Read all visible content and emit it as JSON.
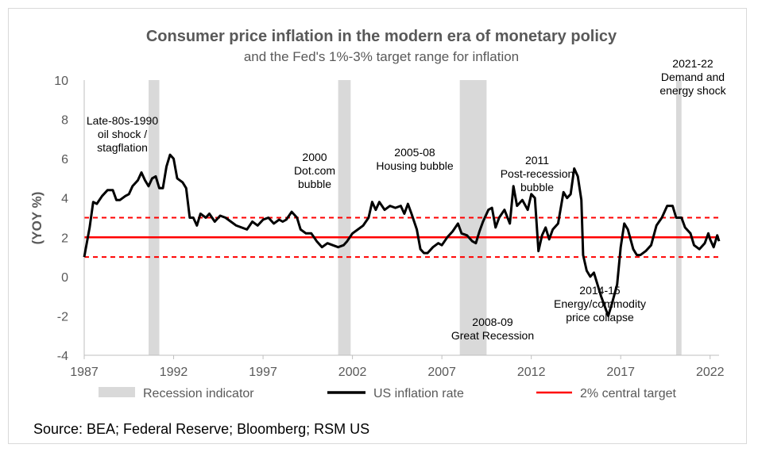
{
  "chart_data": {
    "type": "line",
    "title": "Consumer price inflation in the modern era of monetary policy",
    "subtitle": "and the Fed's 1%-3% target range for inflation",
    "ylabel": "(YOY %)",
    "xlabel": "",
    "xlim": [
      1987,
      2022.5
    ],
    "ylim": [
      -4,
      10
    ],
    "x_ticks": [
      "1987",
      "1992",
      "1997",
      "2002",
      "2007",
      "2012",
      "2017",
      "2022"
    ],
    "y_ticks": [
      "10",
      "8",
      "6",
      "4",
      "2",
      "0",
      "-2",
      "-4"
    ],
    "grid": false,
    "legend_position": "bottom",
    "recessions": [
      [
        1990.6,
        1991.2
      ],
      [
        2001.2,
        2001.9
      ],
      [
        2008.0,
        2009.5
      ],
      [
        2020.1,
        2020.4
      ]
    ],
    "target_lines": [
      {
        "value": 3,
        "style": "dashed"
      },
      {
        "value": 2,
        "style": "solid"
      },
      {
        "value": 1,
        "style": "dashed"
      }
    ],
    "series": [
      {
        "name": "US inflation rate",
        "color": "#000000",
        "points": [
          [
            1987.0,
            1.0
          ],
          [
            1987.3,
            2.5
          ],
          [
            1987.5,
            3.8
          ],
          [
            1987.7,
            3.7
          ],
          [
            1988.0,
            4.1
          ],
          [
            1988.3,
            4.4
          ],
          [
            1988.6,
            4.4
          ],
          [
            1988.8,
            3.9
          ],
          [
            1989.0,
            3.9
          ],
          [
            1989.3,
            4.1
          ],
          [
            1989.5,
            4.2
          ],
          [
            1989.7,
            4.6
          ],
          [
            1990.0,
            4.9
          ],
          [
            1990.2,
            5.3
          ],
          [
            1990.4,
            4.9
          ],
          [
            1990.6,
            4.6
          ],
          [
            1990.8,
            5.0
          ],
          [
            1991.0,
            5.1
          ],
          [
            1991.2,
            4.5
          ],
          [
            1991.4,
            4.5
          ],
          [
            1991.6,
            5.6
          ],
          [
            1991.8,
            6.2
          ],
          [
            1992.0,
            6.0
          ],
          [
            1992.2,
            5.0
          ],
          [
            1992.5,
            4.8
          ],
          [
            1992.7,
            4.5
          ],
          [
            1992.9,
            3.0
          ],
          [
            1993.1,
            3.0
          ],
          [
            1993.3,
            2.6
          ],
          [
            1993.5,
            3.2
          ],
          [
            1993.8,
            3.0
          ],
          [
            1994.0,
            3.2
          ],
          [
            1994.3,
            2.8
          ],
          [
            1994.6,
            3.1
          ],
          [
            1994.9,
            3.0
          ],
          [
            1995.2,
            2.8
          ],
          [
            1995.5,
            2.6
          ],
          [
            1995.8,
            2.5
          ],
          [
            1996.1,
            2.4
          ],
          [
            1996.4,
            2.8
          ],
          [
            1996.7,
            2.6
          ],
          [
            1997.0,
            2.9
          ],
          [
            1997.3,
            3.0
          ],
          [
            1997.6,
            2.7
          ],
          [
            1997.9,
            2.9
          ],
          [
            1998.1,
            2.8
          ],
          [
            1998.3,
            2.9
          ],
          [
            1998.6,
            3.3
          ],
          [
            1998.9,
            3.0
          ],
          [
            1999.1,
            2.4
          ],
          [
            1999.4,
            2.2
          ],
          [
            1999.7,
            2.2
          ],
          [
            2000.0,
            1.8
          ],
          [
            2000.3,
            1.5
          ],
          [
            2000.6,
            1.7
          ],
          [
            2000.9,
            1.6
          ],
          [
            2001.2,
            1.5
          ],
          [
            2001.5,
            1.6
          ],
          [
            2001.7,
            1.8
          ],
          [
            2002.0,
            2.2
          ],
          [
            2002.3,
            2.4
          ],
          [
            2002.6,
            2.6
          ],
          [
            2002.9,
            3.0
          ],
          [
            2003.1,
            3.8
          ],
          [
            2003.3,
            3.4
          ],
          [
            2003.5,
            3.8
          ],
          [
            2003.8,
            3.4
          ],
          [
            2004.1,
            3.6
          ],
          [
            2004.4,
            3.5
          ],
          [
            2004.7,
            3.6
          ],
          [
            2004.9,
            3.2
          ],
          [
            2005.1,
            3.7
          ],
          [
            2005.3,
            3.2
          ],
          [
            2005.6,
            2.4
          ],
          [
            2005.8,
            1.4
          ],
          [
            2006.0,
            1.2
          ],
          [
            2006.2,
            1.2
          ],
          [
            2006.5,
            1.5
          ],
          [
            2006.8,
            1.7
          ],
          [
            2007.0,
            1.6
          ],
          [
            2007.3,
            2.0
          ],
          [
            2007.6,
            2.3
          ],
          [
            2007.9,
            2.7
          ],
          [
            2008.1,
            2.2
          ],
          [
            2008.4,
            2.1
          ],
          [
            2008.7,
            1.8
          ],
          [
            2008.9,
            1.7
          ],
          [
            2009.1,
            2.3
          ],
          [
            2009.3,
            2.8
          ],
          [
            2009.6,
            3.4
          ],
          [
            2009.8,
            3.5
          ],
          [
            2010.0,
            2.5
          ],
          [
            2010.2,
            3.0
          ],
          [
            2010.5,
            3.4
          ],
          [
            2010.8,
            2.7
          ],
          [
            2011.0,
            4.6
          ],
          [
            2011.2,
            3.6
          ],
          [
            2011.5,
            3.9
          ],
          [
            2011.8,
            3.4
          ],
          [
            2012.0,
            4.2
          ],
          [
            2012.2,
            4.0
          ],
          [
            2012.4,
            1.3
          ],
          [
            2012.6,
            2.1
          ],
          [
            2012.8,
            2.5
          ],
          [
            2013.0,
            1.9
          ],
          [
            2013.2,
            2.4
          ],
          [
            2013.5,
            2.7
          ],
          [
            2013.8,
            4.3
          ],
          [
            2014.0,
            4.0
          ],
          [
            2014.2,
            4.2
          ],
          [
            2014.4,
            5.5
          ],
          [
            2014.6,
            5.1
          ],
          [
            2014.8,
            3.9
          ],
          [
            2014.9,
            1.1
          ],
          [
            2015.1,
            0.3
          ],
          [
            2015.3,
            0.0
          ],
          [
            2015.5,
            0.2
          ],
          [
            2015.7,
            -0.4
          ],
          [
            2015.9,
            -1.0
          ],
          [
            2016.1,
            -1.5
          ],
          [
            2016.3,
            -2.0
          ],
          [
            2016.5,
            -1.4
          ],
          [
            2016.8,
            -0.4
          ],
          [
            2017.0,
            1.5
          ],
          [
            2017.2,
            2.7
          ],
          [
            2017.4,
            2.4
          ],
          [
            2017.7,
            1.4
          ],
          [
            2017.9,
            1.1
          ],
          [
            2018.1,
            1.1
          ],
          [
            2018.4,
            1.3
          ],
          [
            2018.7,
            1.6
          ],
          [
            2019.0,
            2.6
          ],
          [
            2019.3,
            3.0
          ],
          [
            2019.6,
            3.6
          ],
          [
            2019.9,
            3.6
          ],
          [
            2020.1,
            3.0
          ],
          [
            2020.4,
            3.0
          ],
          [
            2020.6,
            2.5
          ],
          [
            2020.9,
            2.2
          ],
          [
            2021.1,
            1.6
          ],
          [
            2021.4,
            1.4
          ],
          [
            2021.7,
            1.7
          ],
          [
            2021.9,
            2.2
          ],
          [
            2022.0,
            1.9
          ],
          [
            2022.2,
            1.5
          ],
          [
            2022.4,
            2.1
          ],
          [
            2022.5,
            1.8
          ]
        ]
      },
      {
        "name": "2% central target",
        "color": "#ff0000",
        "values": [
          2,
          2
        ]
      }
    ],
    "annotations": [
      {
        "lines": [
          "Late-80s-1990",
          "oil shock /",
          "stagflation"
        ]
      },
      {
        "lines": [
          "2000",
          "Dot.com",
          "bubble"
        ]
      },
      {
        "lines": [
          "2005-08",
          "Housing bubble"
        ]
      },
      {
        "lines": [
          "2011",
          "Post-recession",
          "bubble"
        ]
      },
      {
        "lines": [
          "2021-22",
          "Demand and",
          "energy shock"
        ]
      },
      {
        "lines": [
          "2014-15",
          "Energy/commodity",
          "price collapse"
        ]
      },
      {
        "lines": [
          "2008-09",
          "Great Recession"
        ]
      }
    ],
    "legend": {
      "recession": "Recession indicator",
      "inflation": "US inflation rate",
      "target": "2% central target"
    }
  },
  "source": "Source: BEA; Federal Reserve;  Bloomberg; RSM US",
  "colors": {
    "recession": "#d9d9d9",
    "inflation": "#000000",
    "target": "#ff0000",
    "text": "#595959"
  }
}
